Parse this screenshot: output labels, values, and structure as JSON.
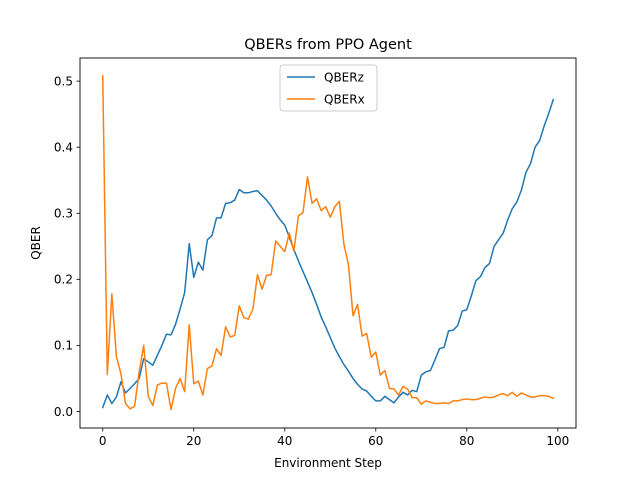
{
  "chart_data": {
    "type": "line",
    "title": "QBERs from PPO Agent",
    "xlabel": "Environment Step",
    "ylabel": "QBER",
    "xlim": [
      -5,
      104
    ],
    "ylim": [
      -0.025,
      0.535
    ],
    "xticks": [
      0,
      20,
      40,
      60,
      80,
      100
    ],
    "yticks": [
      0.0,
      0.1,
      0.2,
      0.3,
      0.4,
      0.5
    ],
    "ytick_labels": [
      "0.0",
      "0.1",
      "0.2",
      "0.3",
      "0.4",
      "0.5"
    ],
    "grid": false,
    "legend": "top-center",
    "x": [
      0,
      1,
      2,
      3,
      4,
      5,
      6,
      7,
      8,
      9,
      10,
      11,
      12,
      13,
      14,
      15,
      16,
      17,
      18,
      19,
      20,
      21,
      22,
      23,
      24,
      25,
      26,
      27,
      28,
      29,
      30,
      31,
      32,
      33,
      34,
      35,
      36,
      37,
      38,
      39,
      40,
      41,
      42,
      43,
      44,
      45,
      46,
      47,
      48,
      49,
      50,
      51,
      52,
      53,
      54,
      55,
      56,
      57,
      58,
      59,
      60,
      61,
      62,
      63,
      64,
      65,
      66,
      67,
      68,
      69,
      70,
      71,
      72,
      73,
      74,
      75,
      76,
      77,
      78,
      79,
      80,
      81,
      82,
      83,
      84,
      85,
      86,
      87,
      88,
      89,
      90,
      91,
      92,
      93,
      94,
      95,
      96,
      97,
      98,
      99
    ],
    "series": [
      {
        "name": "QBERz",
        "color": "#1f77b4",
        "values": [
          0.006,
          0.025,
          0.012,
          0.022,
          0.045,
          0.028,
          0.035,
          0.042,
          0.05,
          0.08,
          0.075,
          0.07,
          0.085,
          0.1,
          0.117,
          0.116,
          0.132,
          0.155,
          0.18,
          0.254,
          0.203,
          0.226,
          0.214,
          0.26,
          0.266,
          0.293,
          0.293,
          0.315,
          0.316,
          0.32,
          0.336,
          0.331,
          0.331,
          0.333,
          0.334,
          0.327,
          0.32,
          0.311,
          0.3,
          0.29,
          0.282,
          0.264,
          0.245,
          0.228,
          0.212,
          0.196,
          0.18,
          0.162,
          0.143,
          0.128,
          0.112,
          0.096,
          0.083,
          0.071,
          0.061,
          0.05,
          0.041,
          0.034,
          0.031,
          0.023,
          0.016,
          0.016,
          0.023,
          0.018,
          0.013,
          0.022,
          0.029,
          0.025,
          0.032,
          0.03,
          0.055,
          0.06,
          0.062,
          0.078,
          0.095,
          0.097,
          0.122,
          0.123,
          0.13,
          0.152,
          0.154,
          0.175,
          0.198,
          0.204,
          0.218,
          0.224,
          0.25,
          0.26,
          0.27,
          0.29,
          0.307,
          0.317,
          0.335,
          0.362,
          0.375,
          0.4,
          0.41,
          0.432,
          0.451,
          0.472
        ]
      },
      {
        "name": "QBERx",
        "color": "#ff7f0e",
        "values": [
          0.508,
          0.056,
          0.178,
          0.083,
          0.057,
          0.012,
          0.004,
          0.008,
          0.06,
          0.1,
          0.023,
          0.009,
          0.04,
          0.043,
          0.043,
          0.003,
          0.035,
          0.05,
          0.03,
          0.131,
          0.042,
          0.046,
          0.025,
          0.065,
          0.069,
          0.095,
          0.085,
          0.128,
          0.113,
          0.115,
          0.16,
          0.142,
          0.14,
          0.155,
          0.207,
          0.185,
          0.206,
          0.207,
          0.258,
          0.25,
          0.242,
          0.27,
          0.243,
          0.296,
          0.301,
          0.355,
          0.315,
          0.322,
          0.304,
          0.31,
          0.294,
          0.31,
          0.318,
          0.253,
          0.222,
          0.145,
          0.162,
          0.114,
          0.118,
          0.082,
          0.09,
          0.055,
          0.062,
          0.035,
          0.034,
          0.025,
          0.038,
          0.034,
          0.021,
          0.021,
          0.011,
          0.016,
          0.014,
          0.012,
          0.012,
          0.013,
          0.012,
          0.016,
          0.016,
          0.018,
          0.019,
          0.018,
          0.018,
          0.02,
          0.022,
          0.021,
          0.022,
          0.025,
          0.027,
          0.024,
          0.029,
          0.023,
          0.028,
          0.025,
          0.022,
          0.022,
          0.024,
          0.024,
          0.023,
          0.02
        ]
      }
    ]
  }
}
